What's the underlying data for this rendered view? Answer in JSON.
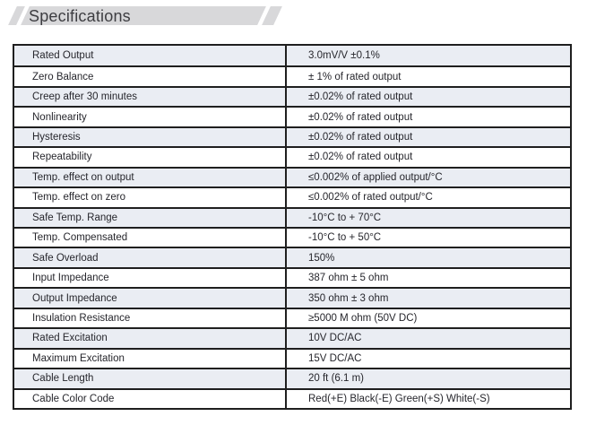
{
  "header": {
    "title": "Specifications"
  },
  "colors": {
    "band_gray": "#d8d8da",
    "row_shade": "#eaedf3",
    "table_border": "#1f1f1f",
    "text": "#26262c"
  },
  "table": {
    "rows": [
      {
        "label": "Rated Output",
        "value": "3.0mV/V ±0.1%"
      },
      {
        "label": "Zero Balance",
        "value": "± 1% of rated output"
      },
      {
        "label": "Creep after 30 minutes",
        "value": "±0.02% of rated output"
      },
      {
        "label": "Nonlinearity",
        "value": "±0.02% of rated output"
      },
      {
        "label": "Hysteresis",
        "value": "±0.02% of rated output"
      },
      {
        "label": "Repeatability",
        "value": "±0.02% of rated output"
      },
      {
        "label": "Temp. effect on output",
        "value": "≤0.002% of applied output/°C"
      },
      {
        "label": "Temp. effect on zero",
        "value": "≤0.002% of rated output/°C"
      },
      {
        "label": "Safe Temp. Range",
        "value": "-10°C to + 70°C"
      },
      {
        "label": "Temp. Compensated",
        "value": "-10°C to + 50°C"
      },
      {
        "label": "Safe Overload",
        "value": "150%"
      },
      {
        "label": "Input Impedance",
        "value": "387 ohm ± 5 ohm"
      },
      {
        "label": "Output Impedance",
        "value": "350 ohm ± 3 ohm"
      },
      {
        "label": "Insulation Resistance",
        "value": "≥5000 M ohm  (50V DC)"
      },
      {
        "label": "Rated Excitation",
        "value": "10V DC/AC"
      },
      {
        "label": "Maximum Excitation",
        "value": "15V DC/AC"
      },
      {
        "label": "Cable Length",
        "value": "20 ft (6.1 m)"
      },
      {
        "label": "Cable Color Code",
        "value": "Red(+E) Black(-E) Green(+S) White(-S)"
      }
    ]
  }
}
